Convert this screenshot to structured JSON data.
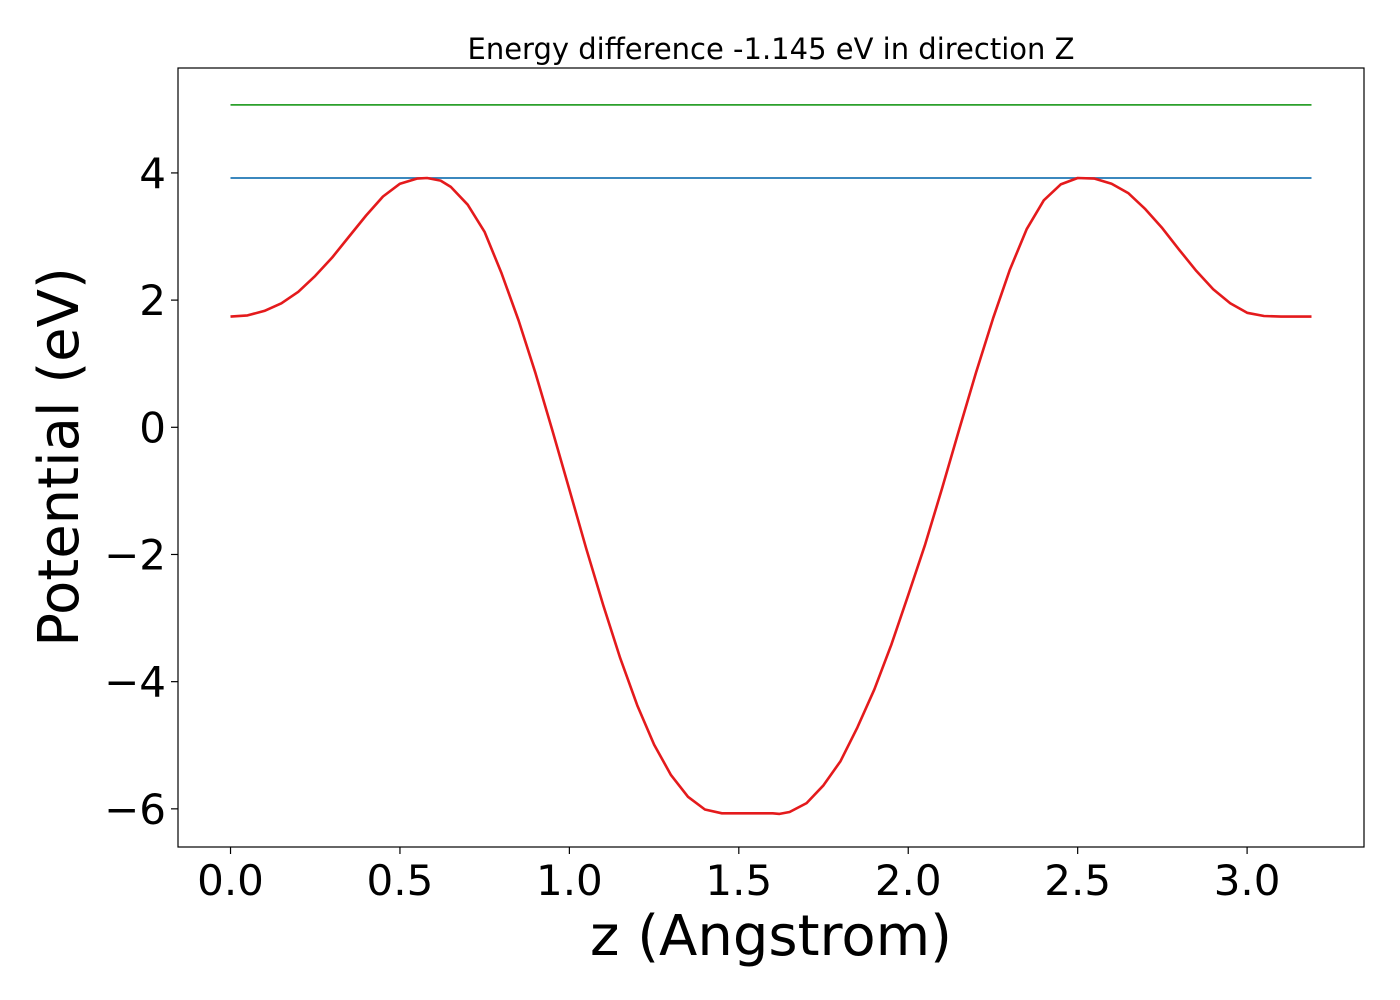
{
  "chart_data": {
    "type": "line",
    "title": "Energy difference -1.145 eV in direction Z",
    "xlabel": "z (Angstrom)",
    "ylabel": "Potential (eV)",
    "xlim": [
      -0.155,
      3.345
    ],
    "ylim": [
      -6.6,
      5.65
    ],
    "xticks": [
      0.0,
      0.5,
      1.0,
      1.5,
      2.0,
      2.5,
      3.0
    ],
    "xtick_labels": [
      "0.0",
      "0.5",
      "1.0",
      "1.5",
      "2.0",
      "2.5",
      "3.0"
    ],
    "yticks": [
      -6,
      -4,
      -2,
      0,
      2,
      4
    ],
    "ytick_labels": [
      "−6",
      "−4",
      "−2",
      "0",
      "2",
      "4"
    ],
    "grid": false,
    "series": [
      {
        "color": "#2ca02c",
        "x": [
          0.0,
          3.19
        ],
        "y": [
          5.07,
          5.07
        ]
      },
      {
        "color": "#1f77b4",
        "x": [
          0.0,
          3.19
        ],
        "y": [
          3.92,
          3.92
        ]
      },
      {
        "color": "#e41a1c",
        "x": [
          0.0,
          0.05,
          0.1,
          0.15,
          0.2,
          0.25,
          0.3,
          0.35,
          0.4,
          0.45,
          0.5,
          0.55,
          0.58,
          0.62,
          0.65,
          0.7,
          0.75,
          0.8,
          0.85,
          0.9,
          0.95,
          1.0,
          1.05,
          1.1,
          1.15,
          1.2,
          1.25,
          1.3,
          1.35,
          1.4,
          1.45,
          1.5,
          1.55,
          1.6,
          1.62,
          1.65,
          1.7,
          1.75,
          1.8,
          1.85,
          1.9,
          1.95,
          2.0,
          2.05,
          2.1,
          2.15,
          2.2,
          2.25,
          2.3,
          2.35,
          2.4,
          2.45,
          2.5,
          2.55,
          2.6,
          2.65,
          2.7,
          2.75,
          2.8,
          2.85,
          2.9,
          2.95,
          3.0,
          3.05,
          3.1,
          3.15,
          3.19
        ],
        "y": [
          1.74,
          1.76,
          1.83,
          1.95,
          2.13,
          2.38,
          2.67,
          3.0,
          3.33,
          3.63,
          3.83,
          3.91,
          3.92,
          3.88,
          3.78,
          3.5,
          3.07,
          2.42,
          1.68,
          0.85,
          -0.05,
          -0.98,
          -1.91,
          -2.8,
          -3.63,
          -4.37,
          -4.99,
          -5.47,
          -5.81,
          -6.01,
          -6.07,
          -6.07,
          -6.07,
          -6.07,
          -6.08,
          -6.05,
          -5.91,
          -5.63,
          -5.25,
          -4.72,
          -4.12,
          -3.42,
          -2.64,
          -1.84,
          -0.96,
          -0.04,
          0.86,
          1.71,
          2.48,
          3.12,
          3.57,
          3.82,
          3.92,
          3.91,
          3.83,
          3.68,
          3.43,
          3.13,
          2.79,
          2.46,
          2.17,
          1.95,
          1.8,
          1.75,
          1.74,
          1.74,
          1.74
        ]
      }
    ]
  }
}
